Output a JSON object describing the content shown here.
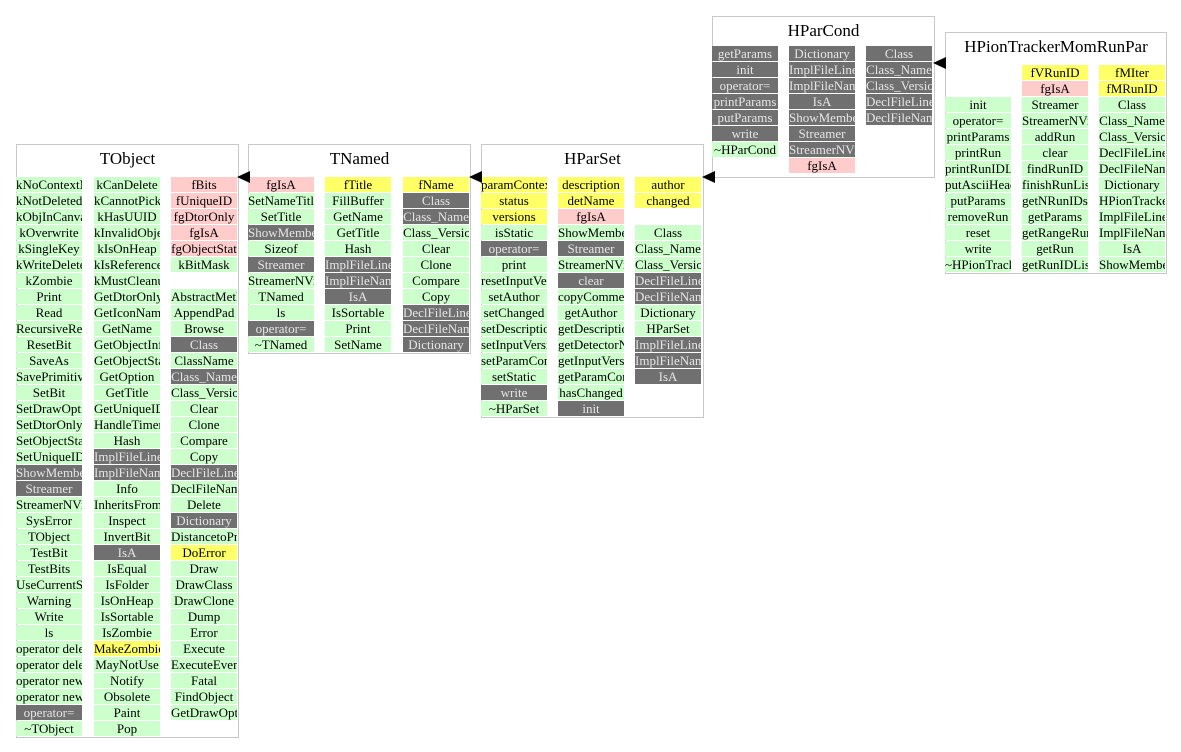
{
  "classes": [
    {
      "name": "TObject",
      "columns": [
        [
          [
            "kNoContextMenu",
            "m"
          ],
          [
            "kNotDeleted",
            "m"
          ],
          [
            "kObjInCanvas",
            "m"
          ],
          [
            "kOverwrite",
            "m"
          ],
          [
            "kSingleKey",
            "m"
          ],
          [
            "kWriteDelete",
            "m"
          ],
          [
            "kZombie",
            "m"
          ],
          [
            "Print",
            "m"
          ],
          [
            "Read",
            "m"
          ],
          [
            "RecursiveRemove",
            "m"
          ],
          [
            "ResetBit",
            "m"
          ],
          [
            "SaveAs",
            "m"
          ],
          [
            "SavePrimitive",
            "m"
          ],
          [
            "SetBit",
            "m"
          ],
          [
            "SetDrawOption",
            "m"
          ],
          [
            "SetDtorOnly",
            "m"
          ],
          [
            "SetObjectStat",
            "m"
          ],
          [
            "SetUniqueID",
            "m"
          ],
          [
            "ShowMembers",
            "g"
          ],
          [
            "Streamer",
            "g"
          ],
          [
            "StreamerNVirtual",
            "m"
          ],
          [
            "SysError",
            "m"
          ],
          [
            "TObject",
            "m"
          ],
          [
            "TestBit",
            "m"
          ],
          [
            "TestBits",
            "m"
          ],
          [
            "UseCurrentStyle",
            "m"
          ],
          [
            "Warning",
            "m"
          ],
          [
            "Write",
            "m"
          ],
          [
            "ls",
            "m"
          ],
          [
            "operator delete",
            "m"
          ],
          [
            "operator delete[]",
            "m"
          ],
          [
            "operator new",
            "m"
          ],
          [
            "operator new[]",
            "m"
          ],
          [
            "operator=",
            "g"
          ],
          [
            "~TObject",
            "m"
          ]
        ],
        [
          [
            "kCanDelete",
            "m"
          ],
          [
            "kCannotPick",
            "m"
          ],
          [
            "kHasUUID",
            "m"
          ],
          [
            "kInvalidObject",
            "m"
          ],
          [
            "kIsOnHeap",
            "m"
          ],
          [
            "kIsReferenced",
            "m"
          ],
          [
            "kMustCleanup",
            "m"
          ],
          [
            "GetDtorOnly",
            "m"
          ],
          [
            "GetIconName",
            "m"
          ],
          [
            "GetName",
            "m"
          ],
          [
            "GetObjectInfo",
            "m"
          ],
          [
            "GetObjectStat",
            "m"
          ],
          [
            "GetOption",
            "m"
          ],
          [
            "GetTitle",
            "m"
          ],
          [
            "GetUniqueID",
            "m"
          ],
          [
            "HandleTimer",
            "m"
          ],
          [
            "Hash",
            "m"
          ],
          [
            "ImplFileLine",
            "g"
          ],
          [
            "ImplFileName",
            "g"
          ],
          [
            "Info",
            "m"
          ],
          [
            "InheritsFrom",
            "m"
          ],
          [
            "Inspect",
            "m"
          ],
          [
            "InvertBit",
            "m"
          ],
          [
            "IsA",
            "g"
          ],
          [
            "IsEqual",
            "m"
          ],
          [
            "IsFolder",
            "m"
          ],
          [
            "IsOnHeap",
            "m"
          ],
          [
            "IsSortable",
            "m"
          ],
          [
            "IsZombie",
            "m"
          ],
          [
            "MakeZombie",
            "y"
          ],
          [
            "MayNotUse",
            "m"
          ],
          [
            "Notify",
            "m"
          ],
          [
            "Obsolete",
            "m"
          ],
          [
            "Paint",
            "m"
          ],
          [
            "Pop",
            "m"
          ]
        ],
        [
          [
            "fBits",
            "p"
          ],
          [
            "fUniqueID",
            "p"
          ],
          [
            "fgDtorOnly",
            "p"
          ],
          [
            "fgIsA",
            "p"
          ],
          [
            "fgObjectStat",
            "p"
          ],
          [
            "kBitMask",
            "m"
          ],
          [
            "",
            "w"
          ],
          [
            "AbstractMethod",
            "m"
          ],
          [
            "AppendPad",
            "m"
          ],
          [
            "Browse",
            "m"
          ],
          [
            "Class",
            "g"
          ],
          [
            "ClassName",
            "m"
          ],
          [
            "Class_Name",
            "g"
          ],
          [
            "Class_Version",
            "m"
          ],
          [
            "Clear",
            "m"
          ],
          [
            "Clone",
            "m"
          ],
          [
            "Compare",
            "m"
          ],
          [
            "Copy",
            "m"
          ],
          [
            "DeclFileLine",
            "g"
          ],
          [
            "DeclFileName",
            "m"
          ],
          [
            "Delete",
            "m"
          ],
          [
            "Dictionary",
            "g"
          ],
          [
            "DistancetoPrimitive",
            "m"
          ],
          [
            "DoError",
            "y"
          ],
          [
            "Draw",
            "m"
          ],
          [
            "DrawClass",
            "m"
          ],
          [
            "DrawClone",
            "m"
          ],
          [
            "Dump",
            "m"
          ],
          [
            "Error",
            "m"
          ],
          [
            "Execute",
            "m"
          ],
          [
            "ExecuteEvent",
            "m"
          ],
          [
            "Fatal",
            "m"
          ],
          [
            "FindObject",
            "m"
          ],
          [
            "GetDrawOption",
            "m"
          ]
        ]
      ]
    },
    {
      "name": "TNamed",
      "columns": [
        [
          [
            "fgIsA",
            "p"
          ],
          [
            "SetNameTitle",
            "m"
          ],
          [
            "SetTitle",
            "m"
          ],
          [
            "ShowMembers",
            "g"
          ],
          [
            "Sizeof",
            "m"
          ],
          [
            "Streamer",
            "g"
          ],
          [
            "StreamerNVirtual",
            "m"
          ],
          [
            "TNamed",
            "m"
          ],
          [
            "ls",
            "m"
          ],
          [
            "operator=",
            "g"
          ],
          [
            "~TNamed",
            "m"
          ]
        ],
        [
          [
            "fTitle",
            "y"
          ],
          [
            "FillBuffer",
            "m"
          ],
          [
            "GetName",
            "m"
          ],
          [
            "GetTitle",
            "m"
          ],
          [
            "Hash",
            "m"
          ],
          [
            "ImplFileLine",
            "g"
          ],
          [
            "ImplFileName",
            "g"
          ],
          [
            "IsA",
            "g"
          ],
          [
            "IsSortable",
            "m"
          ],
          [
            "Print",
            "m"
          ],
          [
            "SetName",
            "m"
          ]
        ],
        [
          [
            "fName",
            "y"
          ],
          [
            "Class",
            "g"
          ],
          [
            "Class_Name",
            "g"
          ],
          [
            "Class_Version",
            "m"
          ],
          [
            "Clear",
            "m"
          ],
          [
            "Clone",
            "m"
          ],
          [
            "Compare",
            "m"
          ],
          [
            "Copy",
            "m"
          ],
          [
            "DeclFileLine",
            "g"
          ],
          [
            "DeclFileName",
            "g"
          ],
          [
            "Dictionary",
            "g"
          ]
        ]
      ]
    },
    {
      "name": "HParSet",
      "columns": [
        [
          [
            "paramContext",
            "y"
          ],
          [
            "status",
            "y"
          ],
          [
            "versions",
            "y"
          ],
          [
            "isStatic",
            "m"
          ],
          [
            "operator=",
            "g"
          ],
          [
            "print",
            "m"
          ],
          [
            "resetInputVersions",
            "m"
          ],
          [
            "setAuthor",
            "m"
          ],
          [
            "setChanged",
            "m"
          ],
          [
            "setDescription",
            "m"
          ],
          [
            "setInputVersion",
            "m"
          ],
          [
            "setParamContext",
            "m"
          ],
          [
            "setStatic",
            "m"
          ],
          [
            "write",
            "g"
          ],
          [
            "~HParSet",
            "m"
          ]
        ],
        [
          [
            "description",
            "y"
          ],
          [
            "detName",
            "y"
          ],
          [
            "fgIsA",
            "p"
          ],
          [
            "ShowMembers",
            "m"
          ],
          [
            "Streamer",
            "g"
          ],
          [
            "StreamerNVirtual",
            "m"
          ],
          [
            "clear",
            "g"
          ],
          [
            "copyComment",
            "m"
          ],
          [
            "getAuthor",
            "m"
          ],
          [
            "getDescription",
            "m"
          ],
          [
            "getDetectorName",
            "m"
          ],
          [
            "getInputVersion",
            "m"
          ],
          [
            "getParamContext",
            "m"
          ],
          [
            "hasChanged",
            "m"
          ],
          [
            "init",
            "g"
          ]
        ],
        [
          [
            "author",
            "y"
          ],
          [
            "changed",
            "y"
          ],
          [
            "",
            "w"
          ],
          [
            "Class",
            "m"
          ],
          [
            "Class_Name",
            "m"
          ],
          [
            "Class_Version",
            "m"
          ],
          [
            "DeclFileLine",
            "g"
          ],
          [
            "DeclFileName",
            "g"
          ],
          [
            "Dictionary",
            "m"
          ],
          [
            "HParSet",
            "m"
          ],
          [
            "ImplFileLine",
            "g"
          ],
          [
            "ImplFileName",
            "g"
          ],
          [
            "IsA",
            "g"
          ]
        ]
      ]
    },
    {
      "name": "HParCond",
      "columns": [
        [
          [
            "getParams",
            "g"
          ],
          [
            "init",
            "g"
          ],
          [
            "operator=",
            "g"
          ],
          [
            "printParams",
            "g"
          ],
          [
            "putParams",
            "g"
          ],
          [
            "write",
            "g"
          ],
          [
            "~HParCond",
            "m"
          ]
        ],
        [
          [
            "Dictionary",
            "g"
          ],
          [
            "ImplFileLine",
            "g"
          ],
          [
            "ImplFileName",
            "g"
          ],
          [
            "IsA",
            "g"
          ],
          [
            "ShowMembers",
            "g"
          ],
          [
            "Streamer",
            "g"
          ],
          [
            "StreamerNVirtual",
            "g"
          ],
          [
            "fgIsA",
            "p"
          ]
        ],
        [
          [
            "Class",
            "g"
          ],
          [
            "Class_Name",
            "g"
          ],
          [
            "Class_Version",
            "g"
          ],
          [
            "DeclFileLine",
            "g"
          ],
          [
            "DeclFileName",
            "g"
          ]
        ]
      ]
    },
    {
      "name": "HPionTrackerMomRunPar",
      "columns": [
        [
          [
            "init",
            "m"
          ],
          [
            "operator=",
            "m"
          ],
          [
            "printParams",
            "m"
          ],
          [
            "printRun",
            "m"
          ],
          [
            "printRunIDList",
            "m"
          ],
          [
            "putAsciiHeader",
            "m"
          ],
          [
            "putParams",
            "m"
          ],
          [
            "removeRun",
            "m"
          ],
          [
            "reset",
            "m"
          ],
          [
            "write",
            "m"
          ],
          [
            "~HPionTrackerMomRunPar",
            "m"
          ]
        ],
        [
          [
            "fVRunID",
            "y"
          ],
          [
            "fgIsA",
            "p"
          ],
          [
            "Streamer",
            "m"
          ],
          [
            "StreamerNVirtual",
            "m"
          ],
          [
            "addRun",
            "m"
          ],
          [
            "clear",
            "m"
          ],
          [
            "findRunID",
            "m"
          ],
          [
            "finishRunList",
            "m"
          ],
          [
            "getNRunIDs",
            "m"
          ],
          [
            "getParams",
            "m"
          ],
          [
            "getRangeRunID",
            "m"
          ],
          [
            "getRun",
            "m"
          ],
          [
            "getRunIDList",
            "m"
          ]
        ],
        [
          [
            "fMIter",
            "y"
          ],
          [
            "fMRunID",
            "y"
          ],
          [
            "Class",
            "m"
          ],
          [
            "Class_Name",
            "m"
          ],
          [
            "Class_Version",
            "m"
          ],
          [
            "DeclFileLine",
            "m"
          ],
          [
            "DeclFileName",
            "m"
          ],
          [
            "Dictionary",
            "m"
          ],
          [
            "HPionTrackerMomRunPar",
            "m"
          ],
          [
            "ImplFileLine",
            "m"
          ],
          [
            "ImplFileName",
            "m"
          ],
          [
            "IsA",
            "m"
          ],
          [
            "ShowMembers",
            "m"
          ]
        ]
      ]
    }
  ],
  "legend_colors": {
    "method": "#ccffcc",
    "method_dark": "#707070",
    "data_member": "#ffff66",
    "static_member": "#ffcccc"
  }
}
